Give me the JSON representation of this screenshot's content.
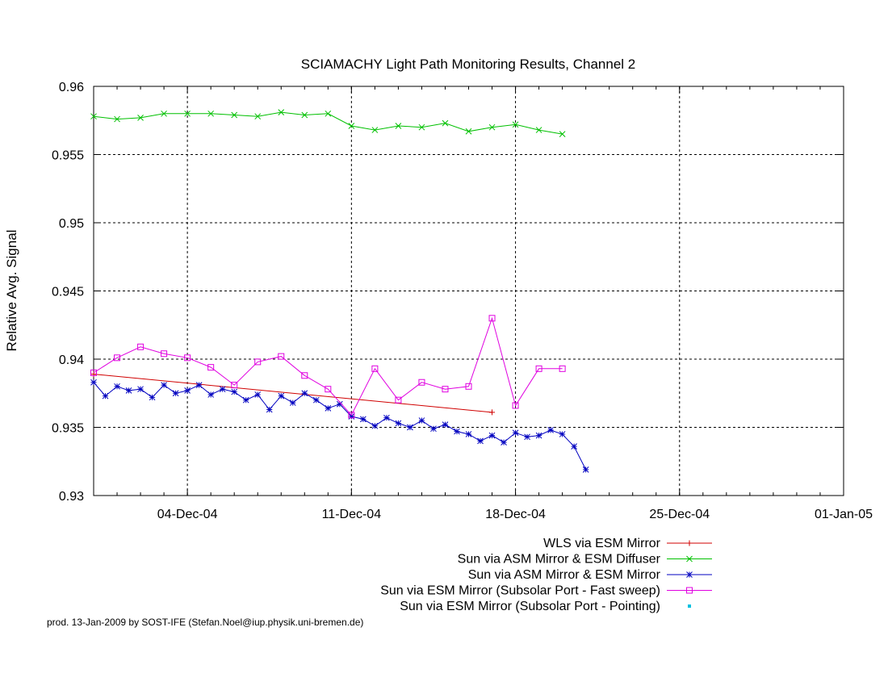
{
  "chart_data": {
    "type": "line",
    "title": "SCIAMACHY Light Path Monitoring Results, Channel 2",
    "xlabel": "",
    "ylabel": "Relative Avg. Signal",
    "xlim": [
      "2004-11-30",
      "2005-01-01"
    ],
    "ylim": [
      0.93,
      0.96
    ],
    "x_ticks": [
      {
        "date": "2004-12-04",
        "label": "04-Dec-04"
      },
      {
        "date": "2004-12-11",
        "label": "11-Dec-04"
      },
      {
        "date": "2004-12-18",
        "label": "18-Dec-04"
      },
      {
        "date": "2004-12-25",
        "label": "25-Dec-04"
      },
      {
        "date": "2005-01-01",
        "label": "01-Jan-05"
      }
    ],
    "y_ticks": [
      {
        "value": 0.93,
        "label": "0.93"
      },
      {
        "value": 0.935,
        "label": "0.935"
      },
      {
        "value": 0.94,
        "label": "0.94"
      },
      {
        "value": 0.945,
        "label": "0.945"
      },
      {
        "value": 0.95,
        "label": "0.95"
      },
      {
        "value": 0.955,
        "label": "0.955"
      },
      {
        "value": 0.96,
        "label": "0.96"
      }
    ],
    "grid": true,
    "legend_position": "bottom-right",
    "series": [
      {
        "name": "WLS via ESM Mirror",
        "color": "#d00000",
        "marker": "plus",
        "x": [
          "2004-11-30",
          "2004-12-17"
        ],
        "y": [
          0.9389,
          0.9361
        ]
      },
      {
        "name": "Sun via ASM Mirror & ESM Diffuser",
        "color": "#00c000",
        "marker": "cross",
        "x": [
          "2004-11-30",
          "2004-12-01",
          "2004-12-02",
          "2004-12-03",
          "2004-12-04",
          "2004-12-05",
          "2004-12-06",
          "2004-12-07",
          "2004-12-08",
          "2004-12-09",
          "2004-12-10",
          "2004-12-11",
          "2004-12-12",
          "2004-12-13",
          "2004-12-14",
          "2004-12-15",
          "2004-12-16",
          "2004-12-17",
          "2004-12-18",
          "2004-12-19",
          "2004-12-20"
        ],
        "y": [
          0.9578,
          0.9576,
          0.9577,
          0.958,
          0.958,
          0.958,
          0.9579,
          0.9578,
          0.9581,
          0.9579,
          0.958,
          0.9571,
          0.9568,
          0.9571,
          0.957,
          0.9573,
          0.9567,
          0.957,
          0.9572,
          0.9568,
          0.9565
        ]
      },
      {
        "name": "Sun via ASM Mirror & ESM Mirror",
        "color": "#0000c0",
        "marker": "star",
        "x": [
          "2004-11-30",
          "2004-11-30T12",
          "2004-12-01",
          "2004-12-01T12",
          "2004-12-02",
          "2004-12-02T12",
          "2004-12-03",
          "2004-12-03T12",
          "2004-12-04",
          "2004-12-04T12",
          "2004-12-05",
          "2004-12-05T12",
          "2004-12-06",
          "2004-12-06T12",
          "2004-12-07",
          "2004-12-07T12",
          "2004-12-08",
          "2004-12-08T12",
          "2004-12-09",
          "2004-12-09T12",
          "2004-12-10",
          "2004-12-10T12",
          "2004-12-11",
          "2004-12-11T12",
          "2004-12-12",
          "2004-12-12T12",
          "2004-12-13",
          "2004-12-13T12",
          "2004-12-14",
          "2004-12-14T12",
          "2004-12-15",
          "2004-12-15T12",
          "2004-12-16",
          "2004-12-16T12",
          "2004-12-17",
          "2004-12-17T12",
          "2004-12-18",
          "2004-12-18T12",
          "2004-12-19",
          "2004-12-19T12",
          "2004-12-20",
          "2004-12-20T12",
          "2004-12-21"
        ],
        "y": [
          0.9383,
          0.9373,
          0.938,
          0.9377,
          0.9378,
          0.9372,
          0.9381,
          0.9375,
          0.9377,
          0.9381,
          0.9374,
          0.9378,
          0.9376,
          0.937,
          0.9374,
          0.9363,
          0.9373,
          0.9368,
          0.9375,
          0.937,
          0.9364,
          0.9367,
          0.9358,
          0.9356,
          0.9351,
          0.9357,
          0.9353,
          0.935,
          0.9355,
          0.9349,
          0.9352,
          0.9347,
          0.9345,
          0.934,
          0.9344,
          0.9339,
          0.9346,
          0.9343,
          0.9344,
          0.9348,
          0.9345,
          0.9336,
          0.9319
        ]
      },
      {
        "name": "Sun via ESM Mirror (Subsolar Port - Fast sweep)",
        "color": "#e000e0",
        "marker": "square",
        "x": [
          "2004-11-30",
          "2004-12-01",
          "2004-12-02",
          "2004-12-03",
          "2004-12-04",
          "2004-12-05",
          "2004-12-06",
          "2004-12-07",
          "2004-12-08",
          "2004-12-09",
          "2004-12-10",
          "2004-12-11",
          "2004-12-12",
          "2004-12-13",
          "2004-12-14",
          "2004-12-15",
          "2004-12-16",
          "2004-12-17",
          "2004-12-18",
          "2004-12-19",
          "2004-12-20"
        ],
        "y": [
          0.939,
          0.9401,
          0.9409,
          0.9404,
          0.9401,
          0.9394,
          0.9381,
          0.9398,
          0.9402,
          0.9388,
          0.9378,
          0.9359,
          0.9393,
          0.937,
          0.9383,
          0.9378,
          0.938,
          0.943,
          0.9366,
          0.9393,
          0.9393
        ]
      },
      {
        "name": "Sun via ESM Mirror (Subsolar Port - Pointing)",
        "color": "#00c0e0",
        "marker": "dot",
        "x": [],
        "y": []
      }
    ]
  },
  "footer": {
    "credit": "prod. 13-Jan-2009 by SOST-IFE (Stefan.Noel@iup.physik.uni-bremen.de)"
  }
}
